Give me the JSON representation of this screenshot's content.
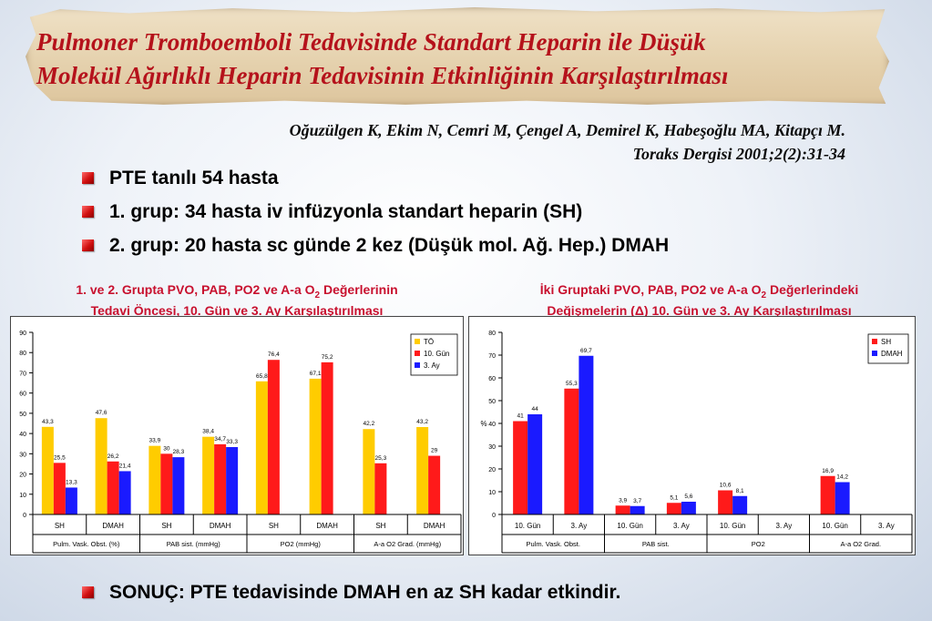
{
  "slide": {
    "title_line1": "Pulmoner Tromboemboli Tedavisinde Standart Heparin ile Düşük",
    "title_line2": "Molekül Ağırlıklı Heparin Tedavisinin Etkinliğinin Karşılaştırılması",
    "citation_line1": "Oğuzülgen K, Ekim N, Cemri M, Çengel A, Demirel K, Habeşoğlu MA, Kitapçı M.",
    "citation_line2": "Toraks Dergisi 2001;2(2):31-34",
    "bullets": [
      "PTE tanılı 54 hasta",
      "1. grup: 34 hasta iv infüzyonla standart heparin (SH)",
      "2. grup: 20 hasta sc günde 2 kez (Düşük mol. Ağ. Hep.) DMAH"
    ],
    "conclusion": "SONUÇ: PTE tedavisinde DMAH en az SH kadar etkindir.",
    "bullet_color": "#d01010",
    "title_color": "#b5121b"
  },
  "chart_data": [
    {
      "type": "bar",
      "title_line1": "1. ve 2. Grupta PVO, PAB, PO2 ve A-a O",
      "title_sub": "2",
      "title_line1_end": " Değerlerinin",
      "title_line2": "Tedavi Öncesi, 10. Gün ve 3. Ay Karşılaştırılması",
      "ylim": [
        0,
        90
      ],
      "yticks": [
        0,
        10,
        20,
        30,
        40,
        50,
        60,
        70,
        80,
        90
      ],
      "ylabel": "",
      "legend_position": "top-right",
      "categories": [
        "SH",
        "DMAH",
        "SH",
        "DMAH",
        "SH",
        "DMAH",
        "SH",
        "DMAH"
      ],
      "groups": [
        "Pulm. Vask. Obst. (%)",
        "PAB sist. (mmHg)",
        "PO2 (mmHg)",
        "A-a O2 Grad. (mmHg)"
      ],
      "series": [
        {
          "name": "TÖ",
          "color": "#ffcc00",
          "values": [
            43.3,
            47.6,
            33.9,
            38.4,
            65.8,
            67.1,
            42.2,
            43.2
          ],
          "labels": [
            "43,3",
            "47,6",
            "33,9",
            "38,4",
            "65,8",
            "67,1",
            "42,2",
            "43,2"
          ]
        },
        {
          "name": "10. Gün",
          "color": "#ff1a1a",
          "values": [
            25.5,
            26.2,
            30,
            34.7,
            76.4,
            75.2,
            25.3,
            29
          ],
          "labels": [
            "25,5",
            "26,2",
            "30",
            "34,7",
            "76,4",
            "75,2",
            "25,3",
            "29"
          ]
        },
        {
          "name": "3. Ay",
          "color": "#1a1aff",
          "values": [
            13.3,
            21.4,
            28.3,
            33.3,
            null,
            null,
            null,
            null
          ],
          "labels": [
            "13,3",
            "21,4",
            "28,3",
            "33,3",
            "",
            "",
            "",
            ""
          ]
        }
      ]
    },
    {
      "type": "bar",
      "title_line1": "İki Gruptaki PVO, PAB, PO2 ve A-a O",
      "title_sub": "2",
      "title_line1_end": " Değerlerindeki",
      "title_line2": "Değişmelerin (Δ) 10. Gün ve 3. Ay Karşılaştırılması",
      "ylim": [
        0,
        80
      ],
      "yticks": [
        0,
        10,
        20,
        30,
        40,
        50,
        60,
        70,
        80
      ],
      "ylabel": "%",
      "legend_position": "top-right",
      "categories": [
        "10. Gün",
        "3. Ay",
        "10. Gün",
        "3. Ay",
        "10. Gün",
        "3. Ay",
        "10. Gün",
        "3. Ay"
      ],
      "groups": [
        "Pulm. Vask. Obst.",
        "PAB sist.",
        "PO2",
        "A-a O2 Grad."
      ],
      "series": [
        {
          "name": "SH",
          "color": "#ff1a1a",
          "values": [
            41,
            55.3,
            3.9,
            5.1,
            10.6,
            null,
            16.9,
            null
          ],
          "labels": [
            "41",
            "55,3",
            "3,9",
            "5,1",
            "10,6",
            "",
            "16,9",
            ""
          ]
        },
        {
          "name": "DMAH",
          "color": "#1a1aff",
          "values": [
            44,
            69.7,
            3.7,
            5.6,
            8.1,
            null,
            14.2,
            null
          ],
          "labels": [
            "44",
            "69,7",
            "3,7",
            "5,6",
            "8,1",
            "",
            "14,2",
            ""
          ]
        }
      ]
    }
  ]
}
